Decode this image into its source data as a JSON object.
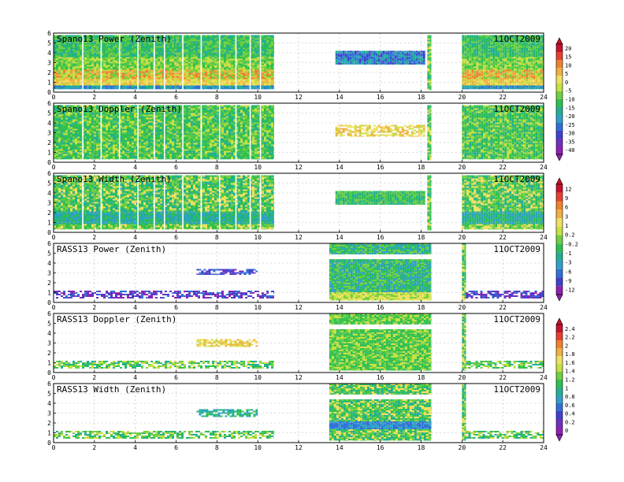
{
  "chart_data": [
    {
      "type": "heatmap",
      "title": "Spano13 Power (Zenith)",
      "date": "11OCT2009",
      "xlim": [
        0,
        24
      ],
      "ylim": [
        0,
        6
      ],
      "x_ticks": [
        "0",
        "2",
        "4",
        "6",
        "8",
        "10",
        "12",
        "14",
        "16",
        "18",
        "20",
        "22",
        "24"
      ],
      "y_ticks": [
        "0",
        "1",
        "2",
        "3",
        "4",
        "5",
        "6"
      ],
      "grid": true,
      "colorbar_group": 0,
      "segments": [
        {
          "x_start": 0.0,
          "x_end": 10.8,
          "y_start": 0.3,
          "y_end": 5.8,
          "profile": "banded_power"
        },
        {
          "x_start": 13.8,
          "x_end": 18.2,
          "y_start": 2.8,
          "y_end": 4.2,
          "profile": "blue_band"
        },
        {
          "x_start": 18.3,
          "x_end": 18.5,
          "y_start": 0.2,
          "y_end": 5.8,
          "profile": "column"
        },
        {
          "x_start": 20.0,
          "x_end": 24.0,
          "y_start": 0.3,
          "y_end": 5.8,
          "profile": "banded_power"
        }
      ]
    },
    {
      "type": "heatmap",
      "title": "Spano13 Doppler (Zenith)",
      "date": "11OCT2009",
      "xlim": [
        0,
        24
      ],
      "ylim": [
        0,
        6
      ],
      "x_ticks": [
        "0",
        "2",
        "4",
        "6",
        "8",
        "10",
        "12",
        "14",
        "16",
        "18",
        "20",
        "22",
        "24"
      ],
      "y_ticks": [
        "0",
        "1",
        "2",
        "3",
        "4",
        "5",
        "6"
      ],
      "grid": true,
      "colorbar_group": 0,
      "segments": [
        {
          "x_start": 0.0,
          "x_end": 10.8,
          "y_start": 0.3,
          "y_end": 5.8,
          "profile": "green_field"
        },
        {
          "x_start": 13.8,
          "x_end": 18.2,
          "y_start": 2.6,
          "y_end": 3.8,
          "profile": "yellow_band"
        },
        {
          "x_start": 18.3,
          "x_end": 18.5,
          "y_start": 0.2,
          "y_end": 5.8,
          "profile": "column"
        },
        {
          "x_start": 20.0,
          "x_end": 24.0,
          "y_start": 0.3,
          "y_end": 5.8,
          "profile": "green_field"
        }
      ]
    },
    {
      "type": "heatmap",
      "title": "Spano13 Width (Zenith)",
      "date": "11OCT2009",
      "xlim": [
        0,
        24
      ],
      "ylim": [
        0,
        6
      ],
      "x_ticks": [
        "0",
        "2",
        "4",
        "6",
        "8",
        "10",
        "12",
        "14",
        "16",
        "18",
        "20",
        "22",
        "24"
      ],
      "y_ticks": [
        "0",
        "1",
        "2",
        "3",
        "4",
        "5",
        "6"
      ],
      "grid": true,
      "colorbar_group": 1,
      "segments": [
        {
          "x_start": 0.0,
          "x_end": 10.8,
          "y_start": 0.3,
          "y_end": 5.8,
          "profile": "width_field"
        },
        {
          "x_start": 13.8,
          "x_end": 18.2,
          "y_start": 2.8,
          "y_end": 4.2,
          "profile": "green_band"
        },
        {
          "x_start": 18.3,
          "x_end": 18.5,
          "y_start": 0.2,
          "y_end": 5.8,
          "profile": "column"
        },
        {
          "x_start": 20.0,
          "x_end": 24.0,
          "y_start": 0.3,
          "y_end": 5.8,
          "profile": "width_field"
        }
      ]
    },
    {
      "type": "heatmap",
      "title": "RASS13 Power (Zenith)",
      "date": "11OCT2009",
      "xlim": [
        0,
        24
      ],
      "ylim": [
        0,
        6
      ],
      "x_ticks": [
        "0",
        "2",
        "4",
        "6",
        "8",
        "10",
        "12",
        "14",
        "16",
        "18",
        "20",
        "22",
        "24"
      ],
      "y_ticks": [
        "0",
        "1",
        "2",
        "3",
        "4",
        "5",
        "6"
      ],
      "grid": true,
      "colorbar_group": 1,
      "segments": [
        {
          "x_start": 0.0,
          "x_end": 10.8,
          "y_start": 0.4,
          "y_end": 1.2,
          "profile": "rass_low"
        },
        {
          "x_start": 7.0,
          "x_end": 10.0,
          "y_start": 2.8,
          "y_end": 3.4,
          "profile": "rass_mid"
        },
        {
          "x_start": 13.5,
          "x_end": 18.5,
          "y_start": 0.2,
          "y_end": 6.0,
          "profile": "rass_block"
        },
        {
          "x_start": 20.0,
          "x_end": 20.2,
          "y_start": 0.2,
          "y_end": 6.0,
          "profile": "column"
        },
        {
          "x_start": 20.2,
          "x_end": 24.0,
          "y_start": 0.4,
          "y_end": 1.2,
          "profile": "rass_low"
        }
      ]
    },
    {
      "type": "heatmap",
      "title": "RASS13 Doppler (Zenith)",
      "date": "11OCT2009",
      "xlim": [
        0,
        24
      ],
      "ylim": [
        0,
        6
      ],
      "x_ticks": [
        "0",
        "2",
        "4",
        "6",
        "8",
        "10",
        "12",
        "14",
        "16",
        "18",
        "20",
        "22",
        "24"
      ],
      "y_ticks": [
        "0",
        "1",
        "2",
        "3",
        "4",
        "5",
        "6"
      ],
      "grid": true,
      "colorbar_group": 2,
      "segments": [
        {
          "x_start": 0.0,
          "x_end": 10.8,
          "y_start": 0.4,
          "y_end": 1.2,
          "profile": "rass_low_green"
        },
        {
          "x_start": 7.0,
          "x_end": 10.0,
          "y_start": 2.6,
          "y_end": 3.4,
          "profile": "yellow_band"
        },
        {
          "x_start": 13.5,
          "x_end": 18.5,
          "y_start": 0.2,
          "y_end": 6.0,
          "profile": "green_block"
        },
        {
          "x_start": 20.0,
          "x_end": 20.2,
          "y_start": 0.2,
          "y_end": 6.0,
          "profile": "column"
        },
        {
          "x_start": 20.2,
          "x_end": 24.0,
          "y_start": 0.4,
          "y_end": 1.2,
          "profile": "rass_low_green"
        }
      ]
    },
    {
      "type": "heatmap",
      "title": "RASS13 Width (Zenith)",
      "date": "11OCT2009",
      "xlim": [
        0,
        24
      ],
      "ylim": [
        0,
        6
      ],
      "x_ticks": [
        "0",
        "2",
        "4",
        "6",
        "8",
        "10",
        "12",
        "14",
        "16",
        "18",
        "20",
        "22",
        "24"
      ],
      "y_ticks": [
        "0",
        "1",
        "2",
        "3",
        "4",
        "5",
        "6"
      ],
      "grid": true,
      "colorbar_group": 2,
      "segments": [
        {
          "x_start": 0.0,
          "x_end": 10.8,
          "y_start": 0.4,
          "y_end": 1.2,
          "profile": "rass_low_green"
        },
        {
          "x_start": 7.0,
          "x_end": 10.0,
          "y_start": 2.6,
          "y_end": 3.4,
          "profile": "teal_band"
        },
        {
          "x_start": 13.5,
          "x_end": 18.5,
          "y_start": 0.2,
          "y_end": 6.0,
          "profile": "width_block"
        },
        {
          "x_start": 20.0,
          "x_end": 20.2,
          "y_start": 0.2,
          "y_end": 6.0,
          "profile": "column"
        },
        {
          "x_start": 20.2,
          "x_end": 24.0,
          "y_start": 0.4,
          "y_end": 1.2,
          "profile": "rass_low_green"
        }
      ]
    }
  ],
  "colorbars": [
    {
      "labels": [
        "20",
        "15",
        "10",
        "5",
        "0",
        "-5",
        "-10",
        "-15",
        "-20",
        "-25",
        "-30",
        "-35",
        "-40"
      ],
      "colors": [
        "#c8102e",
        "#e8402f",
        "#f08030",
        "#f0b040",
        "#f0e060",
        "#c8e040",
        "#70d040",
        "#30c050",
        "#20b090",
        "#30a0c8",
        "#3070d8",
        "#4040d0",
        "#7030c0",
        "#9020b0"
      ]
    },
    {
      "labels": [
        "12",
        "9",
        "6",
        "3",
        "1",
        "0.2",
        "-0.2",
        "-1",
        "-3",
        "-6",
        "-9",
        "-12"
      ],
      "colors": [
        "#c8102e",
        "#e8402f",
        "#f08030",
        "#f0b040",
        "#f0e060",
        "#c8e040",
        "#70d040",
        "#30c050",
        "#20b090",
        "#30a0c8",
        "#3070d8",
        "#4040d0",
        "#9020b0"
      ]
    },
    {
      "labels": [
        "2.4",
        "2.2",
        "2",
        "1.8",
        "1.6",
        "1.4",
        "1.2",
        "1",
        "0.8",
        "0.6",
        "0.4",
        "0.2",
        "0"
      ],
      "colors": [
        "#c8102e",
        "#e8402f",
        "#f08030",
        "#f0b040",
        "#f0e060",
        "#c8e040",
        "#70d040",
        "#30c050",
        "#20b090",
        "#30a0c8",
        "#3070d8",
        "#4040d0",
        "#7030c0",
        "#9020b0"
      ]
    }
  ]
}
